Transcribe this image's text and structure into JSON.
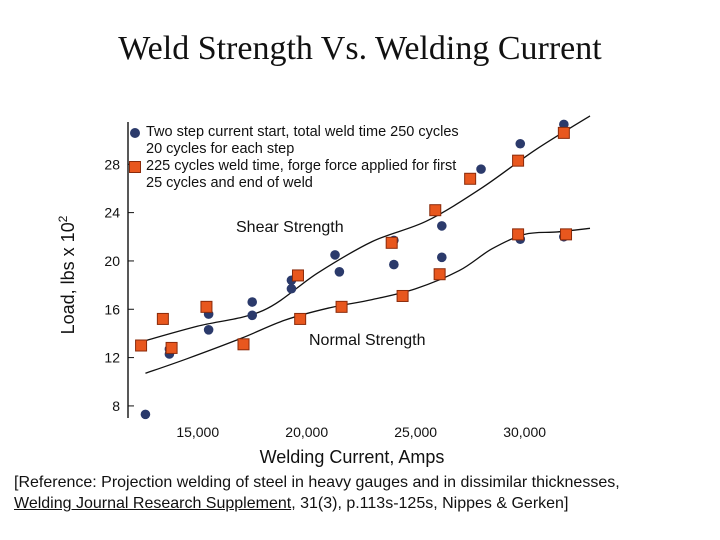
{
  "title": "Weld Strength Vs. Welding Current",
  "legend": {
    "series1": "Two step current start, total weld time 250 cycles 20 cycles for each step",
    "series2": "225 cycles weld time, forge force applied for first 25 cycles and end of weld"
  },
  "annotations": {
    "shear": "Shear Strength",
    "normal": "Normal Strength"
  },
  "reference": {
    "before": "[Reference:  Projection welding of steel in heavy gauges and in dissimilar thicknesses, ",
    "journal": "Welding Journal Research Supplement",
    "after": ", 31(3), p.113s-125s, Nippes & Gerken]"
  },
  "chart_data": {
    "type": "scatter",
    "title": "Weld Strength Vs. Welding Current",
    "xlabel": "Welding Current, Amps",
    "ylabel": "Load, lbs x 10",
    "ylabel_superscript": "2",
    "xlim": [
      11800,
      33000
    ],
    "ylim": [
      7,
      31.5
    ],
    "x_ticks": [
      15000,
      20000,
      25000,
      30000
    ],
    "x_tick_labels": [
      "15,000",
      "20,000",
      "25,000",
      "30,000"
    ],
    "y_ticks": [
      8,
      12,
      16,
      20,
      24,
      28
    ],
    "grid": false,
    "legend_position": "top-left",
    "series": [
      {
        "name": "Two step current start, total weld time 250 cycles 20 cycles for each step",
        "marker": "circle",
        "color": "#2b3a6b",
        "shear": [
          [
            13700,
            12.7
          ],
          [
            15500,
            14.3
          ],
          [
            17500,
            15.5
          ],
          [
            19300,
            17.7
          ],
          [
            21300,
            20.5
          ],
          [
            24000,
            21.7
          ],
          [
            26200,
            22.9
          ],
          [
            28000,
            27.6
          ],
          [
            29800,
            29.7
          ],
          [
            31800,
            31.3
          ]
        ],
        "normal": [
          [
            12600,
            7.3
          ],
          [
            13700,
            12.3
          ],
          [
            15500,
            15.6
          ],
          [
            17500,
            16.6
          ],
          [
            19300,
            18.4
          ],
          [
            21500,
            19.1
          ],
          [
            24000,
            19.7
          ],
          [
            26200,
            20.3
          ],
          [
            29800,
            21.8
          ],
          [
            31800,
            22.0
          ]
        ]
      },
      {
        "name": "225 cycles weld time, forge force applied for first 25 cycles and end of weld",
        "marker": "square",
        "color": "#e8571e",
        "shear": [
          [
            13400,
            15.2
          ],
          [
            15400,
            16.2
          ],
          [
            19600,
            18.8
          ],
          [
            23900,
            21.5
          ],
          [
            25900,
            24.2
          ],
          [
            27500,
            26.8
          ],
          [
            29700,
            28.3
          ],
          [
            31800,
            30.6
          ]
        ],
        "normal": [
          [
            12400,
            13.0
          ],
          [
            13800,
            12.8
          ],
          [
            17100,
            13.1
          ],
          [
            19700,
            15.2
          ],
          [
            21600,
            16.2
          ],
          [
            24400,
            17.1
          ],
          [
            26100,
            18.9
          ],
          [
            29700,
            22.2
          ],
          [
            31900,
            22.2
          ]
        ]
      }
    ],
    "trend_lines": {
      "shear": [
        [
          12600,
          13.4
        ],
        [
          15000,
          14.6
        ],
        [
          18000,
          15.9
        ],
        [
          20500,
          19.0
        ],
        [
          23000,
          21.6
        ],
        [
          25500,
          23.3
        ],
        [
          28000,
          26.0
        ],
        [
          30500,
          29.2
        ],
        [
          33000,
          32.0
        ]
      ],
      "normal": [
        [
          12600,
          10.7
        ],
        [
          14500,
          11.9
        ],
        [
          17000,
          13.6
        ],
        [
          19000,
          15.1
        ],
        [
          21000,
          16.1
        ],
        [
          23000,
          16.8
        ],
        [
          25000,
          17.7
        ],
        [
          27000,
          19.2
        ],
        [
          28500,
          21.0
        ],
        [
          30000,
          22.2
        ],
        [
          31500,
          22.4
        ],
        [
          33000,
          22.7
        ]
      ]
    }
  }
}
